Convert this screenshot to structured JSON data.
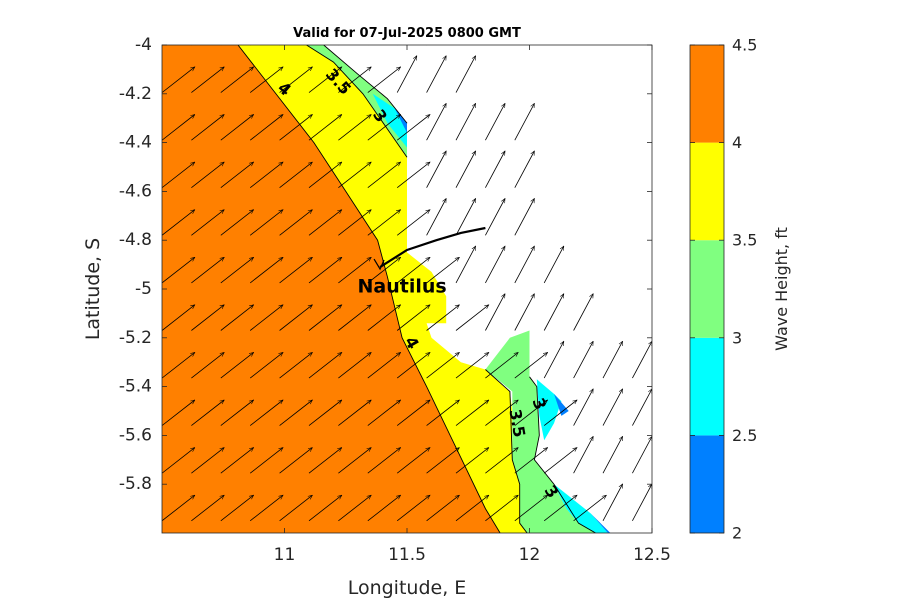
{
  "chart_data": {
    "type": "contour-map",
    "title": "Valid for 07-Jul-2025 0800 GMT",
    "xlabel": "Longitude, E",
    "ylabel": "Latitude, S",
    "xlim": [
      10.5,
      12.5
    ],
    "ylim": [
      -6.0,
      -4.0
    ],
    "xticks": [
      11,
      11.5,
      12,
      12.5
    ],
    "xtick_labels": [
      "11",
      "11.5",
      "12",
      "12.5"
    ],
    "yticks": [
      -4,
      -4.2,
      -4.4,
      -4.6,
      -4.8,
      -5,
      -5.2,
      -5.4,
      -5.6,
      -5.8
    ],
    "ytick_labels": [
      "-4",
      "-4.2",
      "-4.4",
      "-4.6",
      "-4.8",
      "-5",
      "-5.2",
      "-5.4",
      "-5.6",
      "-5.8"
    ],
    "colorbar": {
      "label": "Wave Height, ft",
      "levels": [
        2,
        2.5,
        3,
        3.5,
        4,
        4.5
      ],
      "level_labels": [
        "2",
        "2.5",
        "3",
        "3.5",
        "4",
        "4.5"
      ],
      "colors": [
        "#0080ff",
        "#00ffff",
        "#80ff80",
        "#ffff00",
        "#ff8000"
      ]
    },
    "bands": [
      {
        "name": "4-4.5",
        "color": "#ff8000",
        "polygon": [
          [
            10.5,
            -4.0
          ],
          [
            10.81,
            -4.0
          ],
          [
            11.12,
            -4.4
          ],
          [
            11.25,
            -4.6
          ],
          [
            11.38,
            -4.8
          ],
          [
            11.42,
            -4.95
          ],
          [
            11.48,
            -5.2
          ],
          [
            11.58,
            -5.4
          ],
          [
            11.7,
            -5.65
          ],
          [
            11.82,
            -5.9
          ],
          [
            11.88,
            -6.0
          ],
          [
            10.5,
            -6.0
          ]
        ]
      },
      {
        "name": "3.5-4",
        "color": "#ffff00",
        "polygon": [
          [
            10.81,
            -4.0
          ],
          [
            11.09,
            -4.0
          ],
          [
            11.2,
            -4.07
          ],
          [
            11.32,
            -4.2
          ],
          [
            11.5,
            -4.46
          ],
          [
            11.5,
            -4.85
          ],
          [
            11.6,
            -4.93
          ],
          [
            11.66,
            -5.03
          ],
          [
            11.66,
            -5.14
          ],
          [
            11.58,
            -5.14
          ],
          [
            11.6,
            -5.2
          ],
          [
            11.72,
            -5.3
          ],
          [
            11.82,
            -5.33
          ],
          [
            11.92,
            -5.42
          ],
          [
            11.93,
            -5.5
          ],
          [
            11.93,
            -5.7
          ],
          [
            11.96,
            -5.8
          ],
          [
            11.96,
            -5.96
          ],
          [
            11.99,
            -6.0
          ],
          [
            11.88,
            -6.0
          ],
          [
            11.82,
            -5.9
          ],
          [
            11.7,
            -5.65
          ],
          [
            11.58,
            -5.4
          ],
          [
            11.48,
            -5.2
          ],
          [
            11.42,
            -4.95
          ],
          [
            11.38,
            -4.8
          ],
          [
            11.25,
            -4.6
          ],
          [
            11.12,
            -4.4
          ]
        ]
      },
      {
        "name": "3-3.5",
        "color": "#80ff80",
        "polygon": [
          [
            11.09,
            -4.0
          ],
          [
            11.16,
            -4.0
          ],
          [
            11.3,
            -4.12
          ],
          [
            11.42,
            -4.22
          ],
          [
            11.5,
            -4.32
          ],
          [
            11.5,
            -4.46
          ],
          [
            11.32,
            -4.2
          ],
          [
            11.2,
            -4.07
          ]
        ]
      },
      {
        "name": "3-3.5 south",
        "color": "#80ff80",
        "polygon": [
          [
            11.82,
            -5.33
          ],
          [
            11.92,
            -5.2
          ],
          [
            12.0,
            -5.17
          ],
          [
            12.0,
            -5.36
          ],
          [
            12.03,
            -5.4
          ],
          [
            12.04,
            -5.6
          ],
          [
            12.02,
            -5.7
          ],
          [
            12.1,
            -5.8
          ],
          [
            12.15,
            -5.9
          ],
          [
            12.2,
            -5.96
          ],
          [
            12.27,
            -6.0
          ],
          [
            11.99,
            -6.0
          ],
          [
            11.96,
            -5.96
          ],
          [
            11.96,
            -5.8
          ],
          [
            11.93,
            -5.7
          ],
          [
            11.93,
            -5.42
          ]
        ]
      },
      {
        "name": "2.5-3",
        "color": "#00ffff",
        "polygon": [
          [
            11.36,
            -4.2
          ],
          [
            11.45,
            -4.26
          ],
          [
            11.5,
            -4.32
          ],
          [
            11.5,
            -4.42
          ],
          [
            11.42,
            -4.32
          ]
        ]
      },
      {
        "name": "2.5-3 south",
        "color": "#00ffff",
        "polygon": [
          [
            12.03,
            -5.37
          ],
          [
            12.1,
            -5.43
          ],
          [
            12.13,
            -5.46
          ],
          [
            12.1,
            -5.55
          ],
          [
            12.06,
            -5.62
          ],
          [
            12.04,
            -5.52
          ]
        ]
      },
      {
        "name": "2.5-3 far south",
        "color": "#00ffff",
        "polygon": [
          [
            12.1,
            -5.8
          ],
          [
            12.25,
            -5.92
          ],
          [
            12.32,
            -6.0
          ],
          [
            12.27,
            -6.0
          ],
          [
            12.2,
            -5.96
          ],
          [
            12.15,
            -5.9
          ]
        ]
      },
      {
        "name": "2-2.5",
        "color": "#0080ff",
        "polygon": [
          [
            11.45,
            -4.26
          ],
          [
            11.5,
            -4.32
          ],
          [
            11.5,
            -4.36
          ]
        ]
      },
      {
        "name": "2-2.5 south",
        "color": "#0080ff",
        "polygon": [
          [
            12.1,
            -5.43
          ],
          [
            12.16,
            -5.5
          ],
          [
            12.13,
            -5.52
          ]
        ]
      },
      {
        "name": "2-2.5 far south",
        "color": "#0080ff",
        "polygon": [
          [
            12.25,
            -5.92
          ],
          [
            12.33,
            -6.0
          ],
          [
            12.32,
            -6.0
          ]
        ]
      }
    ],
    "contour_lines": [
      {
        "level": 4,
        "points": [
          [
            10.81,
            -4.0
          ],
          [
            11.12,
            -4.4
          ],
          [
            11.25,
            -4.6
          ],
          [
            11.38,
            -4.8
          ],
          [
            11.42,
            -4.95
          ],
          [
            11.48,
            -5.2
          ],
          [
            11.58,
            -5.4
          ],
          [
            11.7,
            -5.65
          ],
          [
            11.82,
            -5.9
          ],
          [
            11.88,
            -6.0
          ]
        ]
      },
      {
        "level": 3.5,
        "points": [
          [
            11.09,
            -4.0
          ],
          [
            11.2,
            -4.07
          ],
          [
            11.32,
            -4.2
          ],
          [
            11.5,
            -4.46
          ]
        ]
      },
      {
        "level": 3.5,
        "points": [
          [
            11.82,
            -5.33
          ],
          [
            11.92,
            -5.42
          ],
          [
            11.93,
            -5.7
          ],
          [
            11.96,
            -5.8
          ],
          [
            11.96,
            -5.96
          ],
          [
            11.99,
            -6.0
          ]
        ]
      },
      {
        "level": 3,
        "points": [
          [
            11.16,
            -4.0
          ],
          [
            11.3,
            -4.12
          ],
          [
            11.42,
            -4.22
          ],
          [
            11.5,
            -4.32
          ]
        ]
      },
      {
        "level": 3,
        "points": [
          [
            12.0,
            -5.36
          ],
          [
            12.03,
            -5.4
          ],
          [
            12.04,
            -5.6
          ],
          [
            12.02,
            -5.7
          ],
          [
            12.1,
            -5.8
          ],
          [
            12.2,
            -5.96
          ],
          [
            12.27,
            -6.0
          ]
        ]
      }
    ],
    "contour_labels": [
      {
        "text": "4",
        "x": 11.0,
        "y": -4.18,
        "rotate": 40
      },
      {
        "text": "3.5",
        "x": 11.22,
        "y": -4.15,
        "rotate": 48
      },
      {
        "text": "3",
        "x": 11.39,
        "y": -4.29,
        "rotate": 55
      },
      {
        "text": "4",
        "x": 11.52,
        "y": -5.22,
        "rotate": 60
      },
      {
        "text": "3.5",
        "x": 11.95,
        "y": -5.55,
        "rotate": 80
      },
      {
        "text": "3",
        "x": 12.04,
        "y": -5.47,
        "rotate": 70
      },
      {
        "text": "3",
        "x": 12.09,
        "y": -5.83,
        "rotate": 55
      }
    ],
    "vector_field": {
      "description": "wave direction vectors pointing NE",
      "x_start": 10.5,
      "x_step": 0.12,
      "x_count": 17,
      "y_start": -4.0,
      "y_step": 0.195,
      "y_count": 11,
      "direction_deg": 52,
      "length_units": 0.17,
      "coastal_trend_deg": 28
    },
    "annotations": [
      {
        "text": "Nautilus",
        "x": 11.48,
        "y": -4.99
      }
    ],
    "track": [
      [
        11.39,
        -4.91
      ],
      [
        11.5,
        -4.84
      ],
      [
        11.62,
        -4.8
      ],
      [
        11.72,
        -4.77
      ],
      [
        11.82,
        -4.75
      ]
    ]
  }
}
